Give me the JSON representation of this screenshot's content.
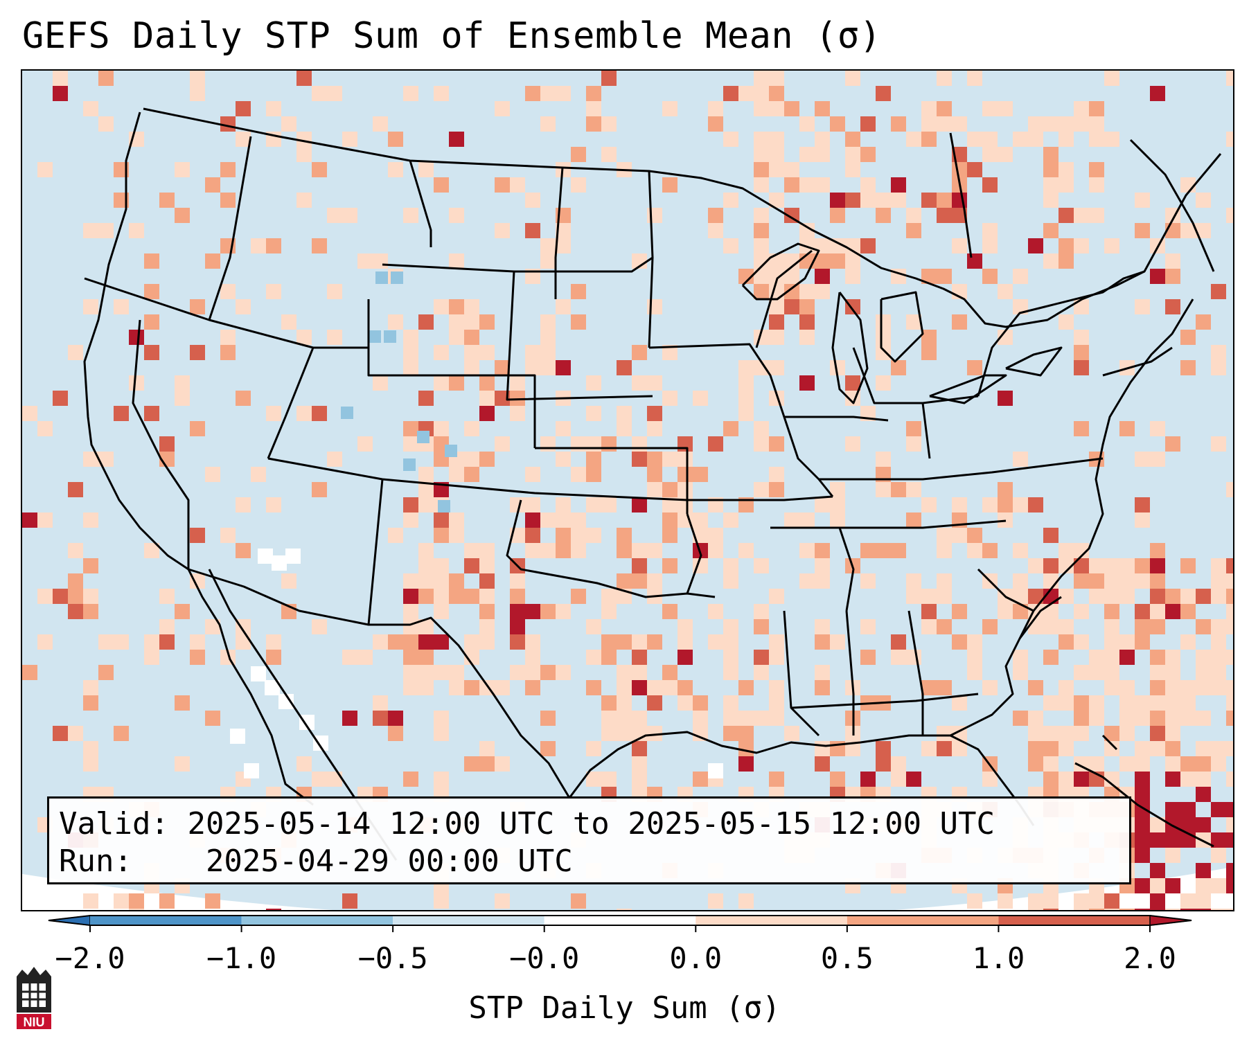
{
  "title": "GEFS Daily STP Sum of Ensemble Mean (σ)",
  "info": {
    "valid_label": "Valid:",
    "valid_value": "2025-05-14 12:00 UTC to 2025-05-15 12:00 UTC",
    "run_label": "Run:",
    "run_value": "2025-04-29 00:00 UTC"
  },
  "colorbar": {
    "label": "STP Daily Sum (σ)",
    "ticks": [
      "−2.0",
      "−1.0",
      "−0.5",
      "−0.0",
      "0.0",
      "0.5",
      "1.0",
      "2.0"
    ],
    "colors": [
      "#2b6fb2",
      "#4e94c8",
      "#92c4df",
      "#d1e5f0",
      "#fddbc7",
      "#f4a582",
      "#d6604d",
      "#b2182b"
    ]
  },
  "map": {
    "background_color": "#d1e5f0",
    "outline_color": "#000000"
  },
  "logo": {
    "text": "NIU"
  }
}
